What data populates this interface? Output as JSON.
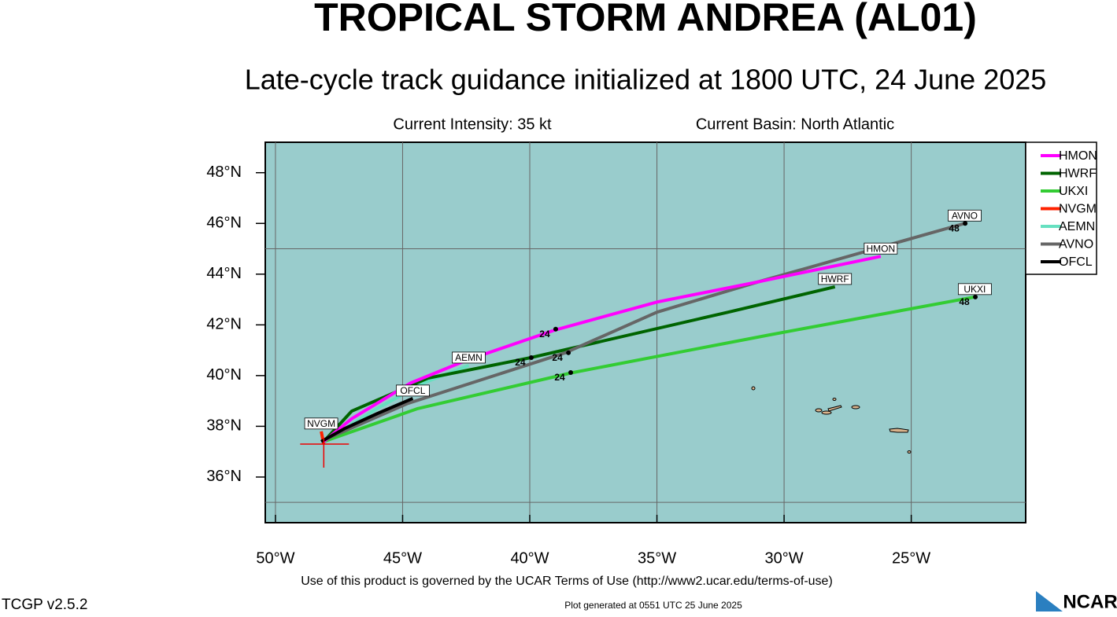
{
  "chart_data": {
    "type": "track-map",
    "title": "TROPICAL STORM ANDREA (AL01)",
    "subtitle": "Late-cycle track guidance initialized at 1800 UTC, 24 June 2025",
    "intensity": "Current Intensity: 35 kt",
    "basin": "Current Basin: North Atlantic",
    "footer": "Use of this product is governed by the UCAR Terms of Use (http://www2.ucar.edu/terms-of-use)",
    "version": "TCGP v2.5.2",
    "generated": "Plot generated at 0551 UTC   25 June 2025",
    "logo": "NCAR",
    "xlim": [
      -50.4,
      -20.5
    ],
    "ylim": [
      34.2,
      49.2
    ],
    "xticks": [
      {
        "value": -50,
        "label": "50°W"
      },
      {
        "value": -45,
        "label": "45°W"
      },
      {
        "value": -40,
        "label": "40°W"
      },
      {
        "value": -35,
        "label": "35°W"
      },
      {
        "value": -30,
        "label": "30°W"
      },
      {
        "value": -25,
        "label": "25°W"
      }
    ],
    "yticks": [
      {
        "value": 36,
        "label": "36°N"
      },
      {
        "value": 38,
        "label": "38°N"
      },
      {
        "value": 40,
        "label": "40°N"
      },
      {
        "value": 42,
        "label": "42°N"
      },
      {
        "value": 44,
        "label": "44°N"
      },
      {
        "value": 46,
        "label": "46°N"
      },
      {
        "value": 48,
        "label": "48°N"
      }
    ],
    "xgrid": [
      -50,
      -45,
      -40,
      -35,
      -30,
      -25
    ],
    "ygrid": [
      35,
      45
    ],
    "current_position": {
      "x": -48.1,
      "y": 37.3
    },
    "series": [
      {
        "name": "HMON",
        "color": "#ff00ff",
        "x": [
          -48.1,
          -47.0,
          -44.7,
          -42.5,
          -39.0,
          -35.0,
          -31.0,
          -26.2
        ],
        "values": [
          37.4,
          38.3,
          39.7,
          40.6,
          41.8,
          42.9,
          43.7,
          44.7
        ]
      },
      {
        "name": "HWRF",
        "color": "#006400",
        "x": [
          -48.1,
          -47.0,
          -44.0,
          -40.0,
          -32.2,
          -28.0
        ],
        "values": [
          37.4,
          38.6,
          39.9,
          40.7,
          42.5,
          43.5
        ]
      },
      {
        "name": "UKXI",
        "color": "#33cc33",
        "x": [
          -48.1,
          -44.4,
          -38.4,
          -30.6,
          -22.5
        ],
        "values": [
          37.4,
          38.7,
          40.1,
          41.6,
          43.1
        ]
      },
      {
        "name": "NVGM",
        "color": "#ff2200",
        "x": [
          -48.1,
          -48.2
        ],
        "values": [
          37.3,
          37.8
        ]
      },
      {
        "name": "AEMN",
        "color": "#66e0c0",
        "x": [
          -48.1,
          -46.0,
          -44.2,
          -42.4
        ],
        "values": [
          37.4,
          38.7,
          39.7,
          40.4
        ]
      },
      {
        "name": "AVNO",
        "color": "#666666",
        "x": [
          -48.0,
          -44.8,
          -38.6,
          -35.0,
          -31.0,
          -22.9
        ],
        "values": [
          37.5,
          38.9,
          40.9,
          42.5,
          43.7,
          46.0
        ]
      },
      {
        "name": "OFCL",
        "color": "#000000",
        "x": [
          -48.2,
          -47.3,
          -46.0,
          -44.6
        ],
        "values": [
          37.4,
          37.9,
          38.5,
          39.1
        ]
      }
    ],
    "annotations": [
      {
        "text": "24",
        "x": -38.98,
        "y": 41.83
      },
      {
        "text": "24",
        "x": -39.94,
        "y": 40.71
      },
      {
        "text": "24",
        "x": -38.48,
        "y": 40.9
      },
      {
        "text": "24",
        "x": -38.39,
        "y": 40.12
      },
      {
        "text": "48",
        "x": -22.88,
        "y": 46.0
      },
      {
        "text": "48",
        "x": -22.48,
        "y": 43.1
      }
    ]
  }
}
